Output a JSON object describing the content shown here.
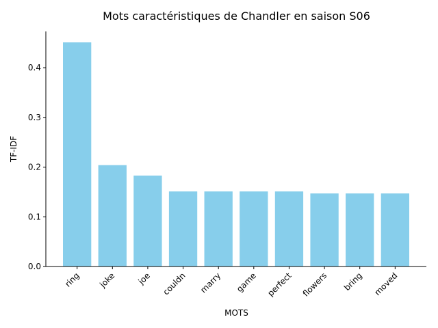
{
  "chart_data": {
    "type": "bar",
    "title": "Mots caractéristiques de Chandler en saison S06",
    "xlabel": "MOTS",
    "ylabel": "TF-IDF",
    "categories": [
      "ring",
      "joke",
      "joe",
      "couldn",
      "marry",
      "game",
      "perfect",
      "flowers",
      "bring",
      "moved"
    ],
    "values": [
      0.451,
      0.204,
      0.183,
      0.151,
      0.151,
      0.151,
      0.151,
      0.147,
      0.147,
      0.147
    ],
    "ylim": [
      0,
      0.473
    ],
    "yticks": [
      0.0,
      0.1,
      0.2,
      0.3,
      0.4
    ],
    "ytick_labels": [
      "0.0",
      "0.1",
      "0.2",
      "0.3",
      "0.4"
    ],
    "bar_color": "#87ceeb",
    "grid": false,
    "xtick_rotation": "45 degrees"
  }
}
